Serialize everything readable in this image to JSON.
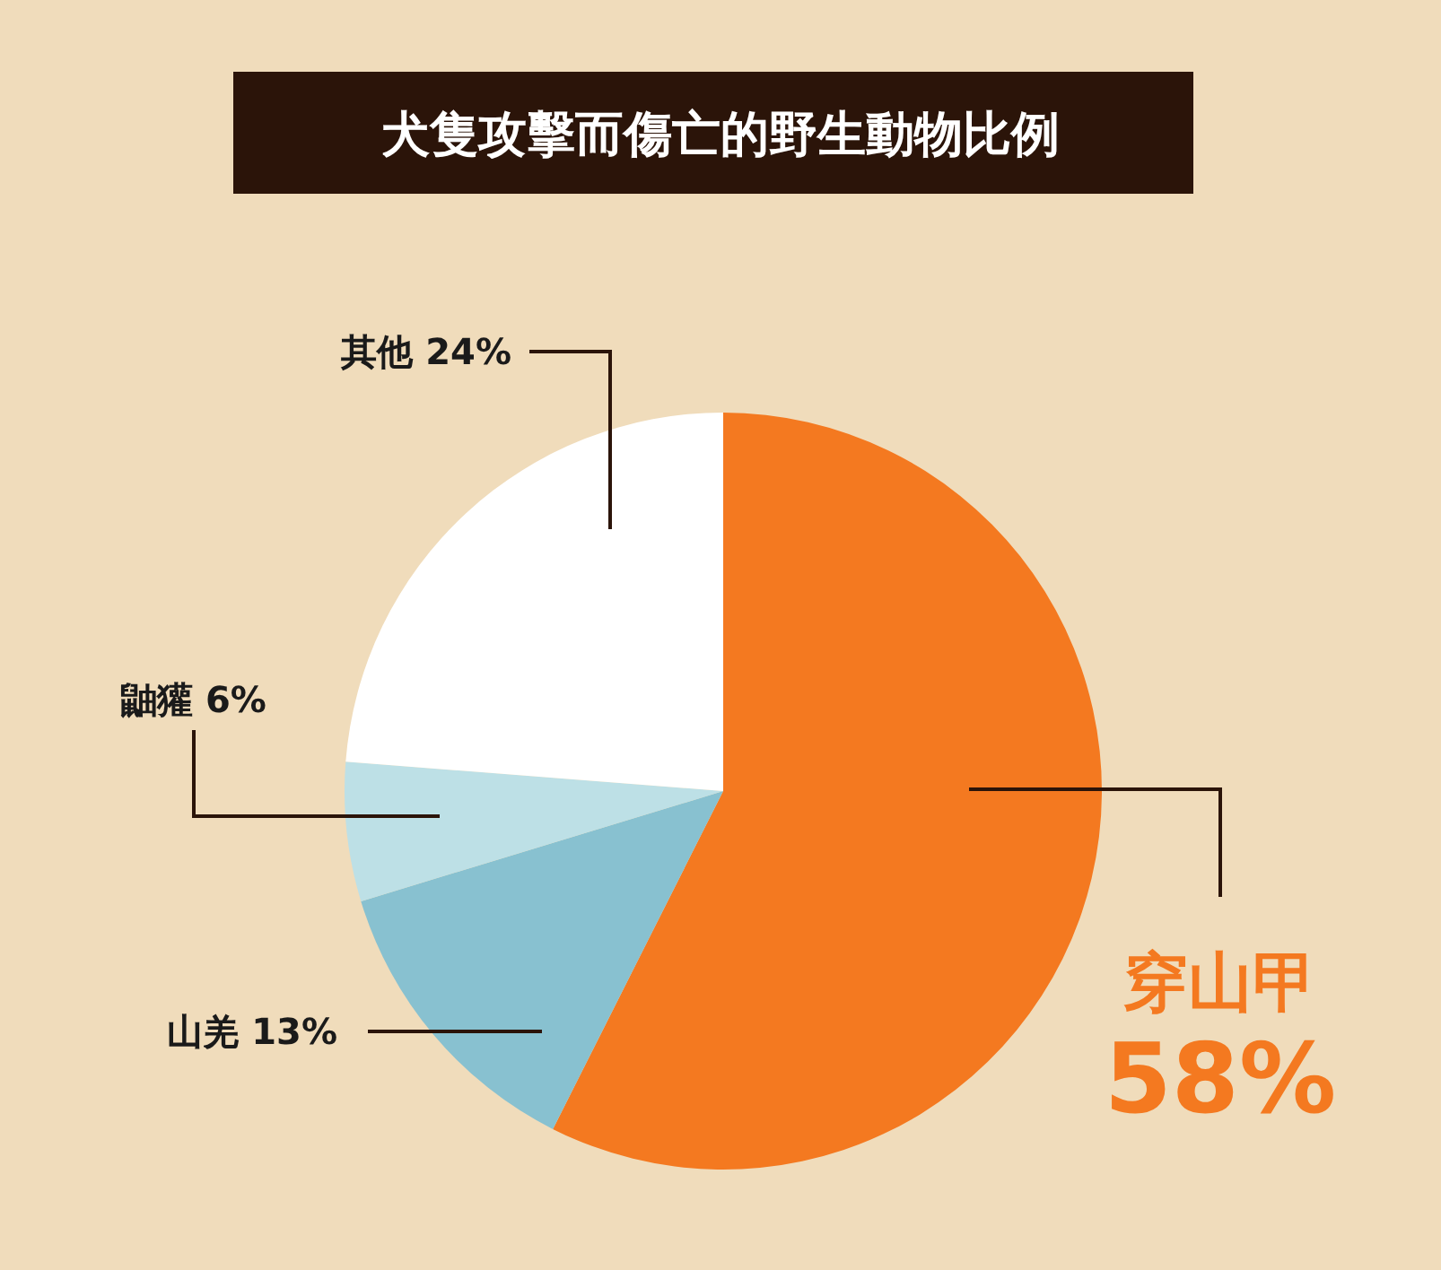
{
  "chart_data": {
    "type": "pie",
    "title": "犬隻攻擊而傷亡的野生動物比例",
    "categories": [
      "穿山甲",
      "山羌",
      "鼬獾",
      "其他"
    ],
    "values": [
      58,
      13,
      6,
      24
    ],
    "value_labels": [
      "58%",
      "13%",
      "6%",
      "24%"
    ],
    "colors": [
      "#f47920",
      "#88c1d0",
      "#bde0e6",
      "#ffffff"
    ]
  }
}
